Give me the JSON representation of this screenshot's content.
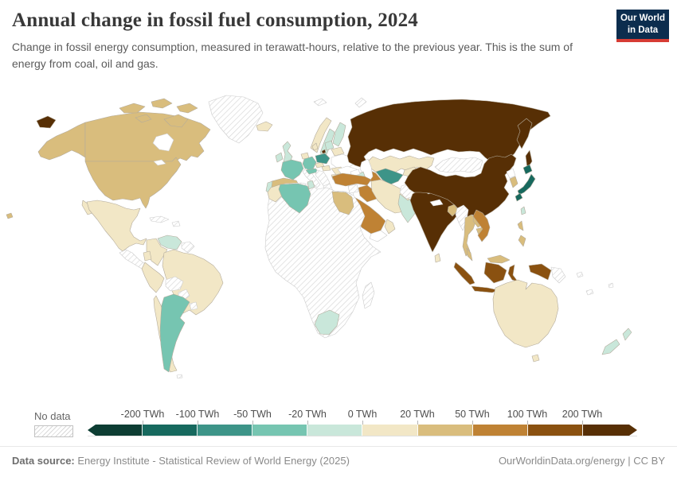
{
  "header": {
    "title": "Annual change in fossil fuel consumption, 2024",
    "subtitle": "Change in fossil energy consumption, measured in terawatt-hours, relative to the previous year. This is the sum of energy from coal, oil and gas.",
    "logo": {
      "line1": "Our World",
      "line2": "in Data",
      "bg": "#0c2d4e",
      "accent": "#d73c34"
    }
  },
  "legend": {
    "no_data_label": "No data",
    "ticks": [
      "-200 TWh",
      "-100 TWh",
      "-50 TWh",
      "-20 TWh",
      "0 TWh",
      "20 TWh",
      "50 TWh",
      "100 TWh",
      "200 TWh"
    ],
    "bins": [
      "#0d3d33",
      "#17695e",
      "#3d9488",
      "#76c5b1",
      "#c9e7da",
      "#f2e7c6",
      "#d9bd7d",
      "#bf8234",
      "#8a5110",
      "#572f05"
    ]
  },
  "chart_data": {
    "type": "choropleth_map",
    "title": "Annual change in fossil fuel consumption, 2024",
    "unit": "TWh",
    "bin_edges": [
      -200,
      -100,
      -50,
      -20,
      0,
      20,
      50,
      100,
      200
    ],
    "bin_colors": [
      "#0d3d33",
      "#17695e",
      "#3d9488",
      "#76c5b1",
      "#c9e7da",
      "#f2e7c6",
      "#d9bd7d",
      "#bf8234",
      "#8a5110",
      "#572f05"
    ],
    "legend_position": "bottom",
    "no_data_style": "diagonal-hatch"
  },
  "map": {
    "border": "#b3ab9c",
    "border_hatch": "#cccccc",
    "regions": {
      "chukotka-west": "#572f05",
      "alaska": "#d9bd7d",
      "canada": "#d9bd7d",
      "baffin-island": "#d9bd7d",
      "arctic-island-1": "#d9bd7d",
      "arctic-island-2": "#d9bd7d",
      "arctic-island-3": "#d9bd7d",
      "arctic-island-4": "#d9bd7d",
      "hudson-bay": "#ffffff",
      "great-lakes": "#ffffff",
      "greenland": "hatch",
      "usa": "#d9bd7d",
      "mexico": "#f2e7c6",
      "baja": "#f2e7c6",
      "central-america": "hatch",
      "cuba": "hatch",
      "hispaniola": "hatch",
      "hawaii": "#d9bd7d",
      "venezuela": "#c9e7da",
      "colombia": "#f2e7c6",
      "guyanas": "hatch",
      "ecuador": "#f2e7c6",
      "peru": "#f2e7c6",
      "brazil": "#f2e7c6",
      "bolivia": "hatch",
      "paraguay": "hatch",
      "chile": "#f2e7c6",
      "argentina": "#76c5b1",
      "uruguay": "hatch",
      "falklands": "hatch",
      "iceland": "#f2e7c6",
      "svalbard": "hatch",
      "norway": "#f2e7c6",
      "sweden": "#c9e7da",
      "finland": "#c9e7da",
      "denmark": "#f2e7c6",
      "uk": "#c9e7da",
      "ireland": "#c9e7da",
      "benelux": "#f2e7c6",
      "germany": "#76c5b1",
      "france": "#76c5b1",
      "spain": "#d9bd7d",
      "portugal": "#c9e7da",
      "italy": "hatch",
      "switzerland-austria": "#76c5b1",
      "czechia": "#f2e7c6",
      "poland": "#3d9488",
      "baltics": "#c9e7da",
      "kaliningrad": "#572f05",
      "belarus": "#f2e7c6",
      "ukraine": "#ffffff",
      "romania": "#f2e7c6",
      "hungary": "#f2e7c6",
      "balkans": "hatch",
      "bulgaria": "#f2e7c6",
      "greece": "hatch",
      "russia": "#572f05",
      "novaya-zemlya": "hatch",
      "kamchatka": "#572f05",
      "sakhalin": "#572f05",
      "kazakhstan": "#f2e7c6",
      "uzbekistan": "#3d9488",
      "turkmenistan": "#bf8234",
      "kyrgyzstan-tajikistan": "#f2e7c6",
      "caspian-sea": "#ffffff",
      "black-sea": "#ffffff",
      "azerbaijan": "#c9e7da",
      "georgia-armenia": "#ffffff",
      "turkey": "#bf8234",
      "syria": "hatch",
      "iraq": "#bf8234",
      "jordan-israel": "#ffffff",
      "saudi-arabia": "#bf8234",
      "yemen": "#ffffff",
      "oman": "#f2e7c6",
      "iran": "#f2e7c6",
      "afghanistan": "hatch",
      "pakistan": "#c9e7da",
      "india": "#572f05",
      "nepal": "#ffffff",
      "sri-lanka": "#f2e7c6",
      "bangladesh": "#d9bd7d",
      "china": "#572f05",
      "mongolia": "hatch",
      "north-korea": "#ffffff",
      "south-korea": "#d9bd7d",
      "japan-hokkaido": "#17695e",
      "japan-honshu": "#17695e",
      "japan-kyushu": "#17695e",
      "taiwan": "#c9e7da",
      "myanmar": "hatch",
      "thailand": "#d9bd7d",
      "laos": "#d9bd7d",
      "cambodia": "#d9bd7d",
      "vietnam": "#bf8234",
      "malaysia-peninsula": "#d9bd7d",
      "malaysia-borneo": "#d9bd7d",
      "indonesia-sumatra": "#8a5110",
      "indonesia-java": "#8a5110",
      "indonesia-kalimantan": "#8a5110",
      "indonesia-sulawesi": "#8a5110",
      "indonesia-papua": "#8a5110",
      "papua-new-guinea": "hatch",
      "philippines-north": "#d9bd7d",
      "philippines-south": "#d9bd7d",
      "africa-mainland": "hatch",
      "morocco": "#f2e7c6",
      "algeria": "#76c5b1",
      "tunisia": "#c9e7da",
      "egypt": "#d9bd7d",
      "south-africa": "#c9e7da",
      "madagascar": "hatch",
      "australia": "#f2e7c6",
      "tasmania": "#f2e7c6",
      "new-zealand-north": "#c9e7da",
      "new-zealand-south": "#c9e7da",
      "solomon-islands": "hatch",
      "new-caledonia": "hatch",
      "fiji": "hatch"
    }
  },
  "footer": {
    "source_label": "Data source:",
    "source": "Energy Institute - Statistical Review of World Energy (2025)",
    "right": "OurWorldinData.org/energy | CC BY"
  }
}
